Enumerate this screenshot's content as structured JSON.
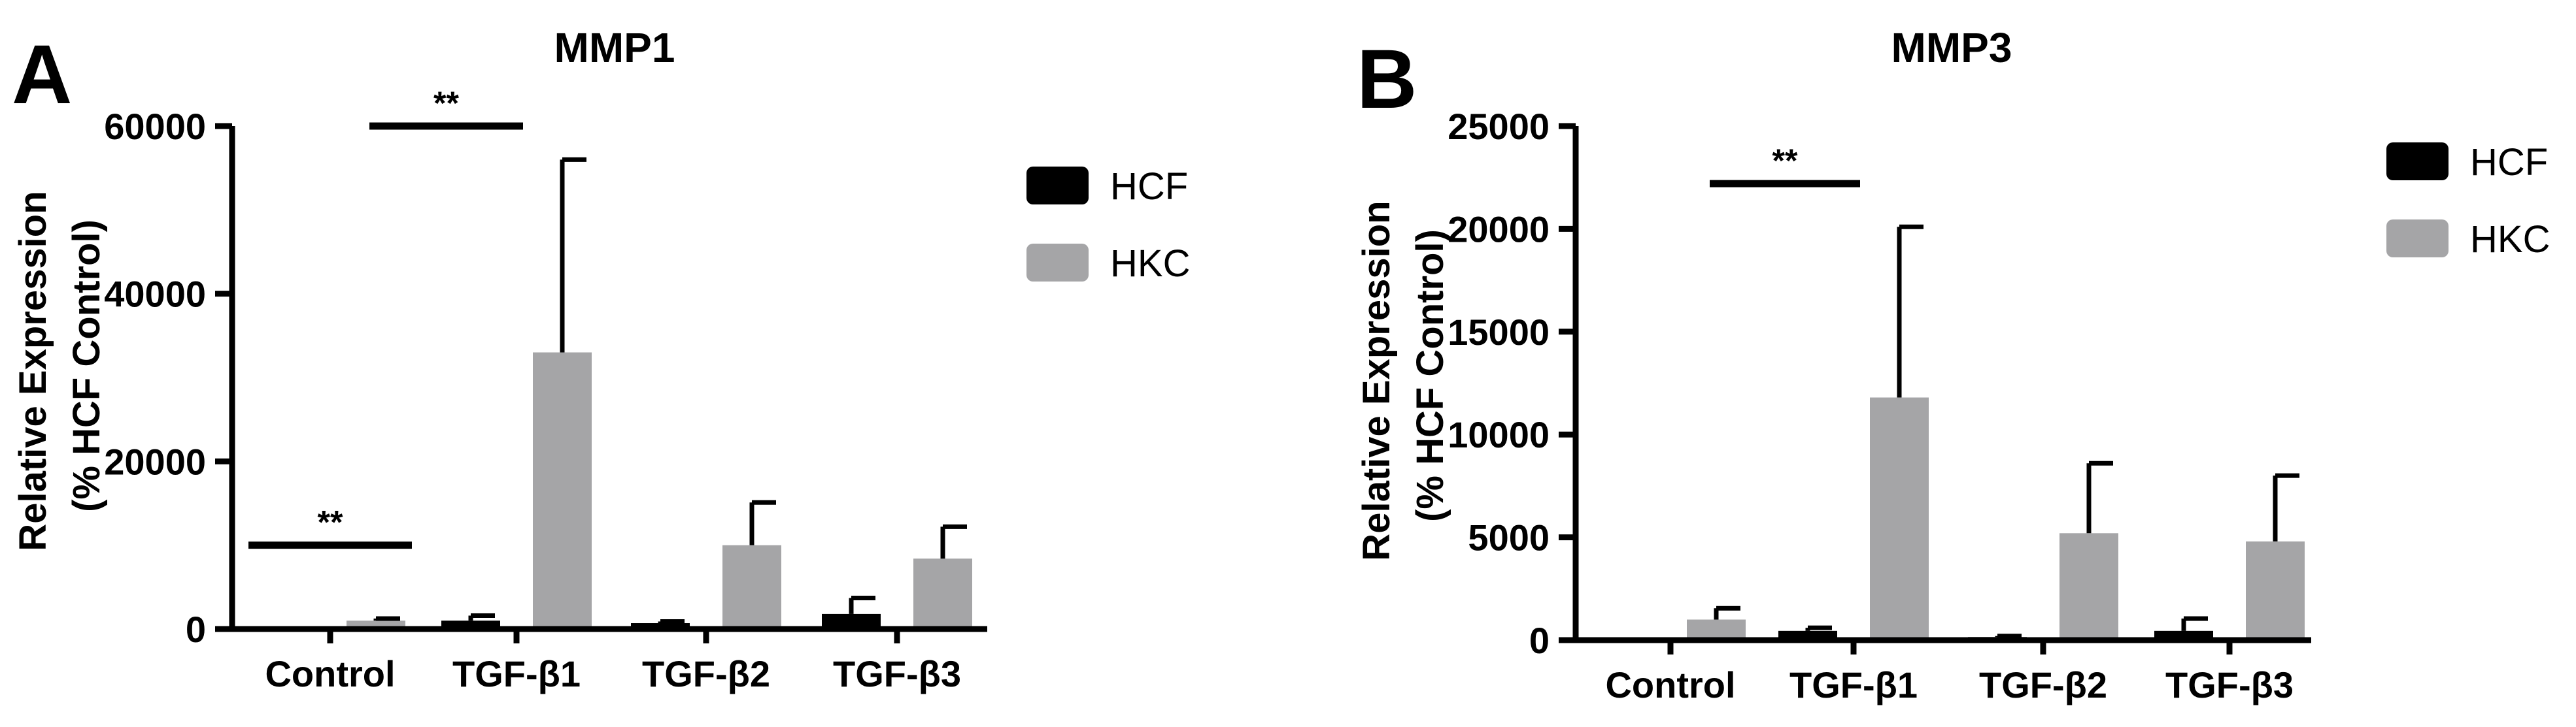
{
  "panels": [
    {
      "letter": "A",
      "title": "MMP1",
      "ylabel_line1": "Relative  Expression",
      "ylabel_line2": "(% HCF  Control)"
    },
    {
      "letter": "B",
      "title": "MMP3",
      "ylabel_line1": "Relative  Expression",
      "ylabel_line2": "(% HCF  Control)"
    }
  ],
  "colors": {
    "HCF": "#000000",
    "HKC": "#a5a5a7",
    "axis": "#000000"
  },
  "chart_data": [
    {
      "type": "bar",
      "title": "MMP1",
      "ylabel": "Relative  Expression (% HCF  Control)",
      "xlabel": "",
      "categories": [
        "Control",
        "TGF-β1",
        "TGF-β2",
        "TGF-β3"
      ],
      "series": [
        {
          "name": "HCF",
          "values": [
            100,
            1000,
            700,
            1800
          ],
          "errors": [
            0,
            600,
            200,
            1900
          ]
        },
        {
          "name": "HKC",
          "values": [
            1000,
            33000,
            10000,
            8400
          ],
          "errors": [
            250,
            23000,
            5100,
            3800
          ]
        }
      ],
      "ylim": [
        0,
        60000
      ],
      "yticks": [
        0,
        20000,
        40000,
        60000
      ],
      "legend": "right",
      "grid": false,
      "significance": [
        {
          "label": "**",
          "from": "Control",
          "to": "Control",
          "y": 10000
        },
        {
          "label": "**",
          "from": "Control",
          "to": "TGF-β1",
          "y": 60000
        }
      ]
    },
    {
      "type": "bar",
      "title": "MMP3",
      "ylabel": "Relative  Expression (% HCF  Control)",
      "xlabel": "",
      "categories": [
        "Control",
        "TGF-β1",
        "TGF-β2",
        "TGF-β3"
      ],
      "series": [
        {
          "name": "HCF",
          "values": [
            100,
            450,
            150,
            450
          ],
          "errors": [
            0,
            150,
            50,
            600
          ]
        },
        {
          "name": "HKC",
          "values": [
            1000,
            11800,
            5200,
            4800
          ],
          "errors": [
            550,
            8300,
            3400,
            3200
          ]
        }
      ],
      "ylim": [
        0,
        25000
      ],
      "yticks": [
        0,
        5000,
        10000,
        15000,
        20000,
        25000
      ],
      "legend": "right",
      "grid": false,
      "significance": [
        {
          "label": "**",
          "from": "Control",
          "to": "TGF-β1",
          "y": 22200
        }
      ]
    }
  ]
}
